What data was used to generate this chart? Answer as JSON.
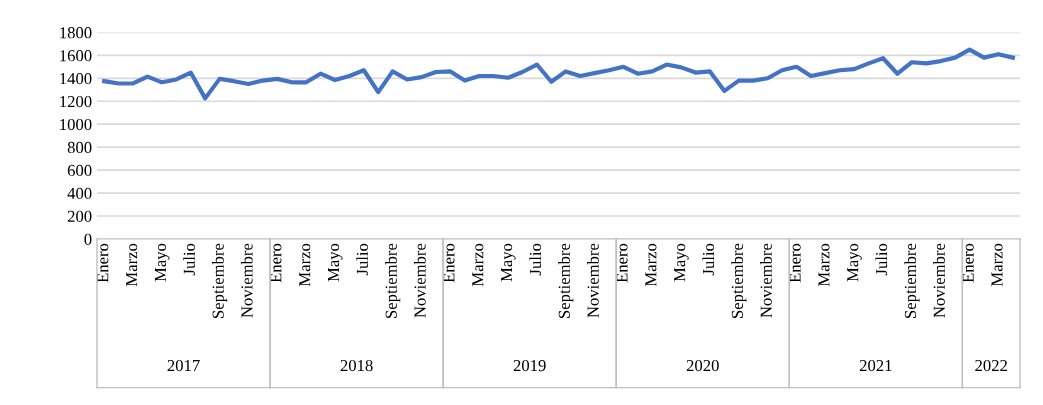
{
  "chart_data": {
    "type": "line",
    "categories": [
      "Enero",
      null,
      "Marzo",
      null,
      "Mayo",
      null,
      "Julio",
      null,
      "Septiembre",
      null,
      "Noviembre",
      null,
      "Enero",
      null,
      "Marzo",
      null,
      "Mayo",
      null,
      "Julio",
      null,
      "Septiembre",
      null,
      "Noviembre",
      null,
      "Enero",
      null,
      "Marzo",
      null,
      "Mayo",
      null,
      "Julio",
      null,
      "Septiembre",
      null,
      "Noviembre",
      null,
      "Enero",
      null,
      "Marzo",
      null,
      "Mayo",
      null,
      "Julio",
      null,
      "Septiembre",
      null,
      "Noviembre",
      null,
      "Enero",
      null,
      "Marzo",
      null,
      "Mayo",
      null,
      "Julio",
      null,
      "Septiembre",
      null,
      "Noviembre",
      null,
      "Enero",
      null,
      "Marzo",
      null
    ],
    "series": [
      {
        "color": "#4472c4",
        "values": [
          1375,
          1355,
          1355,
          1415,
          1365,
          1390,
          1450,
          1225,
          1395,
          1375,
          1350,
          1380,
          1395,
          1365,
          1365,
          1440,
          1385,
          1420,
          1470,
          1280,
          1460,
          1390,
          1410,
          1455,
          1460,
          1380,
          1420,
          1420,
          1405,
          1455,
          1520,
          1370,
          1460,
          1420,
          1445,
          1470,
          1500,
          1440,
          1460,
          1520,
          1495,
          1450,
          1460,
          1290,
          1380,
          1380,
          1400,
          1470,
          1500,
          1420,
          1445,
          1470,
          1480,
          1530,
          1575,
          1440,
          1540,
          1530,
          1550,
          1580,
          1650,
          1580,
          1610,
          1580
        ]
      }
    ],
    "ylim": [
      0,
      1800
    ],
    "yticks": [
      0,
      200,
      400,
      600,
      800,
      1000,
      1200,
      1400,
      1600,
      1800
    ],
    "grid": "y",
    "marker": "none",
    "line_style": "solid",
    "annotations": [
      "2017",
      "2018",
      "2019",
      "2020",
      "2021",
      "2022"
    ]
  }
}
